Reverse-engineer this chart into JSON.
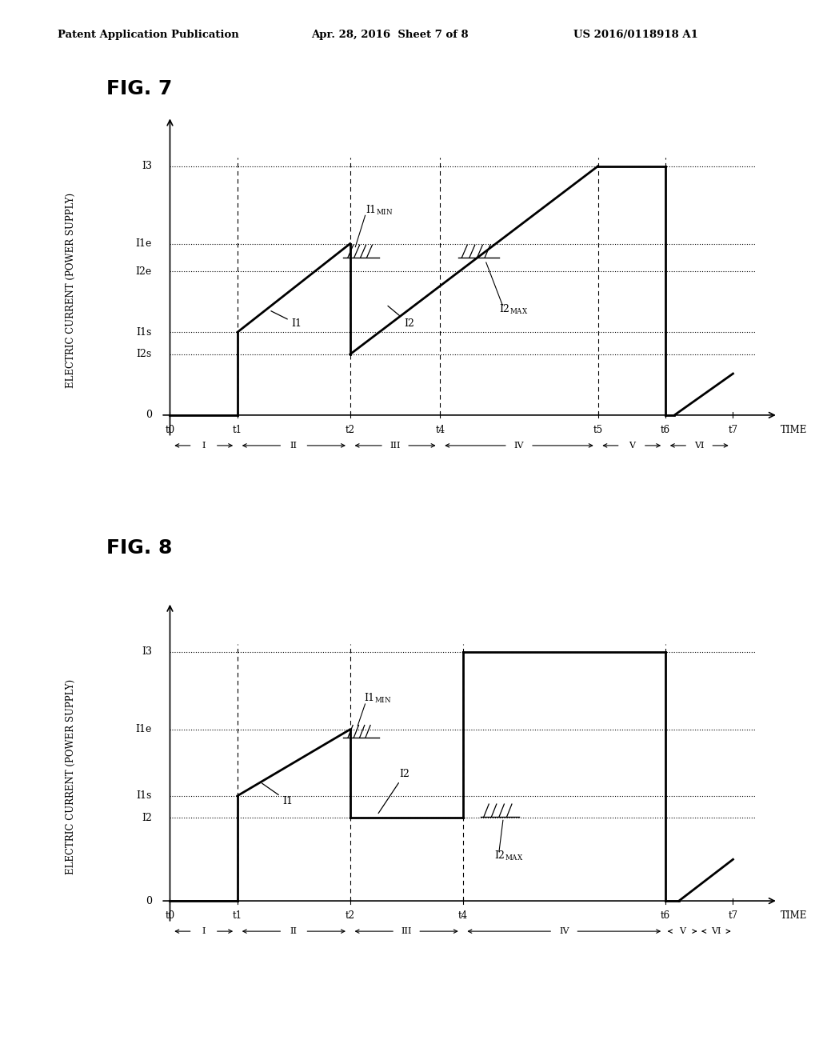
{
  "header_left": "Patent Application Publication",
  "header_mid": "Apr. 28, 2016  Sheet 7 of 8",
  "header_right": "US 2016/0118918 A1",
  "fig7": {
    "title": "FIG. 7",
    "ylabel": "ELECTRIC CURRENT (POWER SUPPLY)",
    "y_levels": {
      "I3": 9.0,
      "I1e": 6.2,
      "I2e": 5.2,
      "I1s": 3.0,
      "I2s": 2.2
    },
    "t_positions": {
      "t0": 0.0,
      "t1": 1.5,
      "t2": 4.0,
      "t4": 6.0,
      "t5": 9.5,
      "t6": 11.0,
      "t7": 12.5
    }
  },
  "fig8": {
    "title": "FIG. 8",
    "ylabel": "ELECTRIC CURRENT (POWER SUPPLY)",
    "y_levels": {
      "I3": 9.0,
      "I1e": 6.2,
      "I1s": 3.8,
      "I2": 3.0
    },
    "t_positions": {
      "t0": 0.0,
      "t1": 1.5,
      "t2": 4.0,
      "t4": 6.5,
      "t6": 11.0,
      "t7": 12.5
    }
  }
}
